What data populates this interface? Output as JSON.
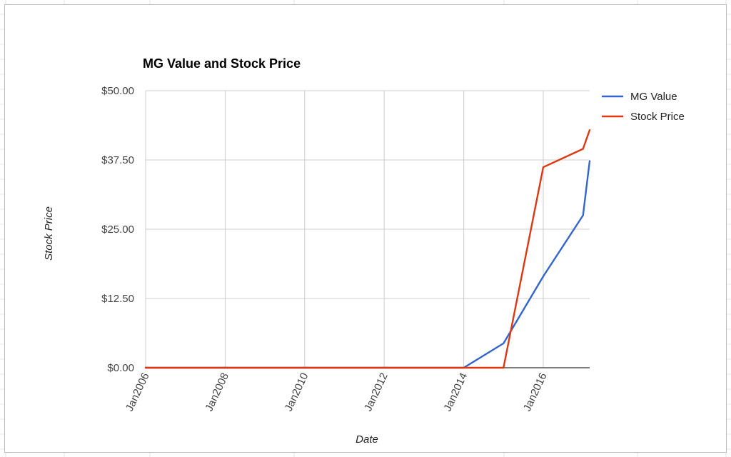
{
  "chart_data": {
    "type": "line",
    "title": "MG Value and Stock Price",
    "xlabel": "Date",
    "ylabel": "Stock Price",
    "x_ticks": [
      "Jan2006",
      "Jan2008",
      "Jan2010",
      "Jan2012",
      "Jan2014",
      "Jan2016"
    ],
    "y_ticks": [
      "$0.00",
      "$12.50",
      "$25.00",
      "$37.50",
      "$50.00"
    ],
    "ylim": [
      0,
      50
    ],
    "xlim": [
      "2006-01",
      "2017-03"
    ],
    "grid": true,
    "legend_position": "right",
    "series": [
      {
        "name": "MG Value",
        "color": "#3366cc",
        "points": [
          [
            "2006-01",
            0
          ],
          [
            "2007-01",
            0
          ],
          [
            "2008-01",
            0
          ],
          [
            "2009-01",
            0
          ],
          [
            "2010-01",
            0
          ],
          [
            "2011-01",
            0
          ],
          [
            "2012-01",
            0
          ],
          [
            "2013-01",
            0
          ],
          [
            "2014-01",
            0
          ],
          [
            "2015-01",
            4.4
          ],
          [
            "2016-01",
            16.5
          ],
          [
            "2017-01",
            27.5
          ],
          [
            "2017-03",
            37.3
          ]
        ]
      },
      {
        "name": "Stock Price",
        "color": "#dc3912",
        "points": [
          [
            "2006-01",
            0
          ],
          [
            "2007-01",
            0
          ],
          [
            "2008-01",
            0
          ],
          [
            "2009-01",
            0
          ],
          [
            "2010-01",
            0
          ],
          [
            "2011-01",
            0
          ],
          [
            "2012-01",
            0
          ],
          [
            "2013-01",
            0
          ],
          [
            "2014-01",
            0
          ],
          [
            "2015-01",
            0
          ],
          [
            "2016-01",
            36.2
          ],
          [
            "2017-01",
            39.5
          ],
          [
            "2017-03",
            42.9
          ]
        ]
      }
    ]
  }
}
